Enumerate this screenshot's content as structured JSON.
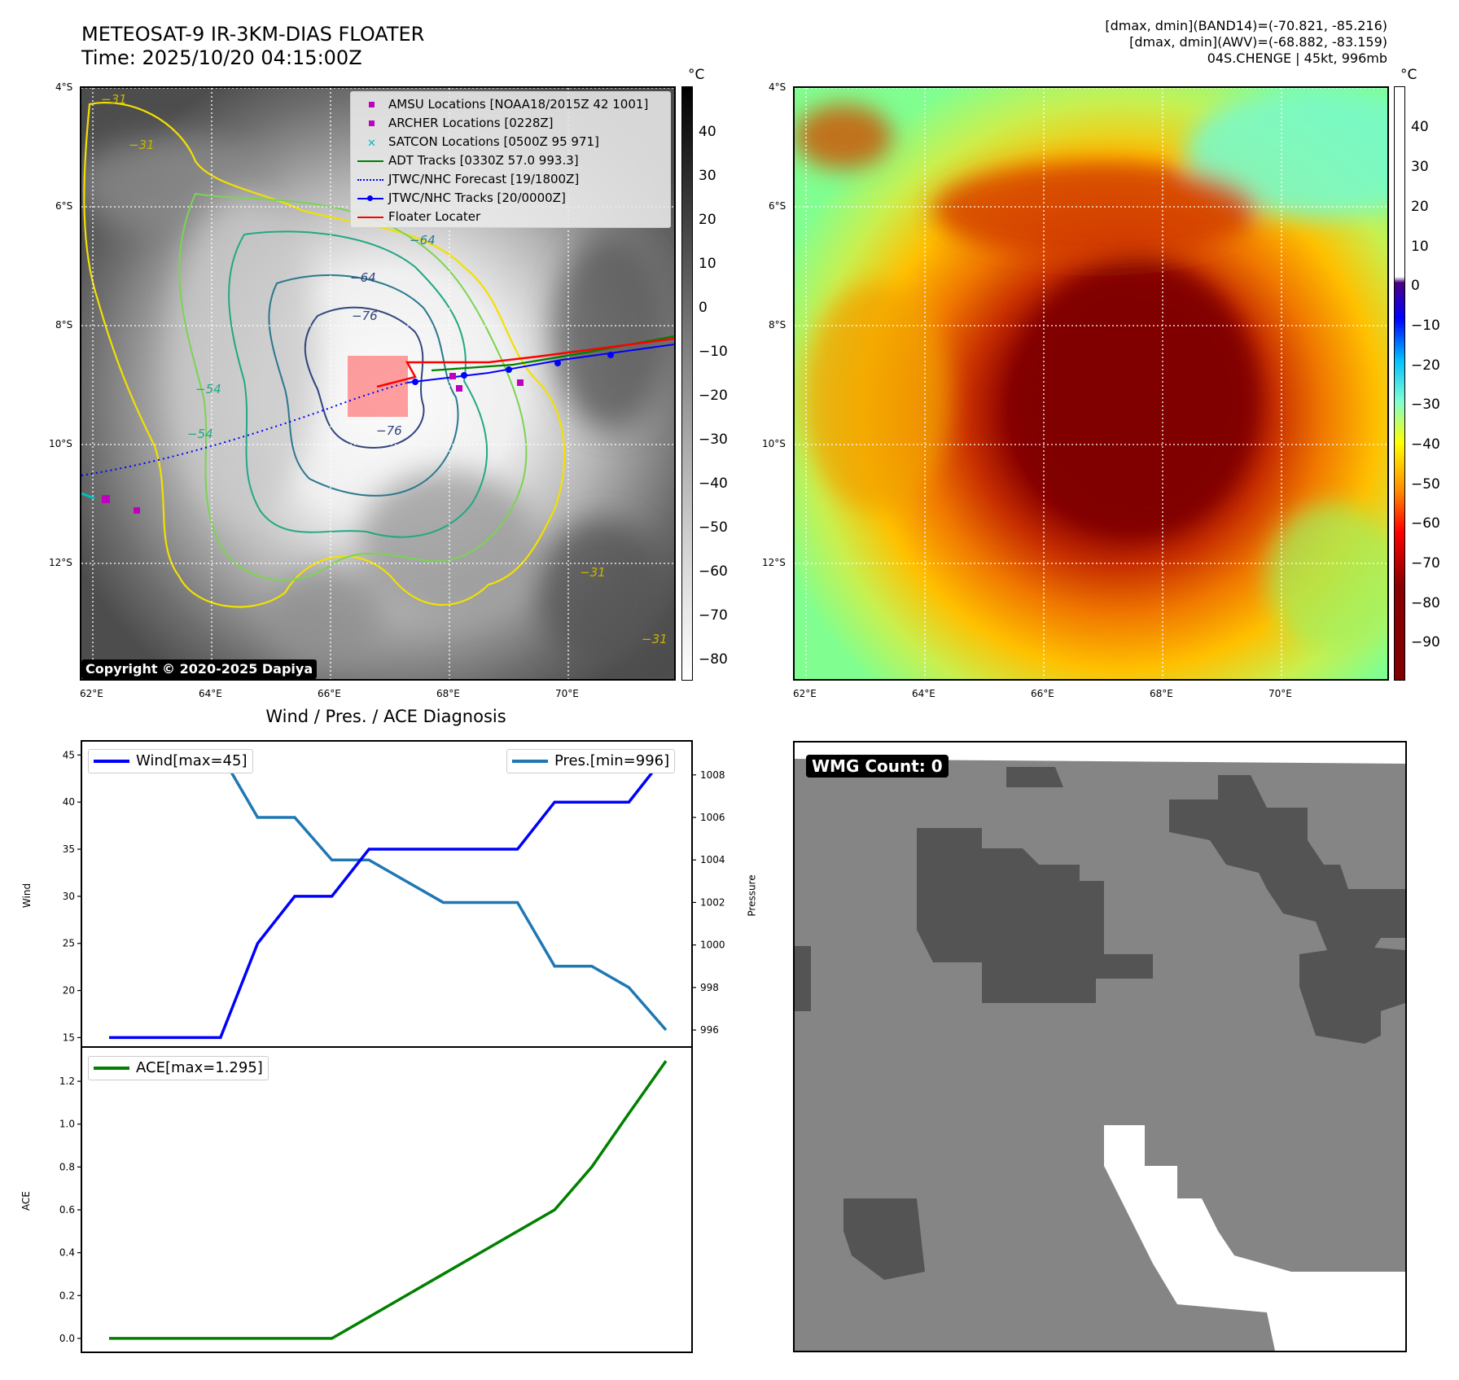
{
  "header": {
    "title_line1": "METEOSAT-9 IR-3KM-DIAS FLOATER",
    "title_line2": "Time: 2025/10/20 04:15:00Z",
    "info_line1": "[dmax, dmin](BAND14)=(-70.821, -85.216)",
    "info_line2": "[dmax, dmin](AWV)=(-68.882, -83.159)",
    "info_line3": "04S.CHENGE | 45kt, 996mb"
  },
  "map_axes": {
    "lat_labels": [
      "4°S",
      "6°S",
      "8°S",
      "10°S",
      "12°S"
    ],
    "lon_labels": [
      "62°E",
      "64°E",
      "66°E",
      "68°E",
      "70°E"
    ]
  },
  "colorbar_ir": {
    "unit": "°C",
    "ticks": [
      "40",
      "30",
      "20",
      "10",
      "0",
      "−10",
      "−20",
      "−30",
      "−40",
      "−50",
      "−60",
      "−70",
      "−80"
    ]
  },
  "colorbar_awv": {
    "unit": "°C",
    "ticks": [
      "40",
      "30",
      "20",
      "10",
      "0",
      "−10",
      "−20",
      "−30",
      "−40",
      "−50",
      "−60",
      "−70",
      "−80",
      "−90"
    ]
  },
  "ir_legend": {
    "items": [
      {
        "label": "AMSU Locations [NOAA18/2015Z 42 1001]",
        "symbol": "square",
        "color": "#bf00bf"
      },
      {
        "label": "ARCHER Locations [0228Z]",
        "symbol": "square",
        "color": "#bf00bf"
      },
      {
        "label": "SATCON Locations [0500Z 95 971]",
        "symbol": "x",
        "color": "#00bfbf"
      },
      {
        "label": "ADT Tracks [0330Z 57.0 993.3]",
        "symbol": "line",
        "color": "#008000"
      },
      {
        "label": "JTWC/NHC Forecast [19/1800Z]",
        "symbol": "dotted",
        "color": "#0000ff"
      },
      {
        "label": "JTWC/NHC Tracks [20/0000Z]",
        "symbol": "line-dot",
        "color": "#0000ff"
      },
      {
        "label": "Floater Locater",
        "symbol": "line",
        "color": "#ff0000"
      }
    ]
  },
  "contour_labels": [
    "−31",
    "−31",
    "−64",
    "−64",
    "−76",
    "−76",
    "−54",
    "−54",
    "−31",
    "−31"
  ],
  "copyright": "Copyright © 2020-2025 Dapiya",
  "diagnosis_title": "Wind / Pres. / ACE Diagnosis",
  "wmg": {
    "label": "WMG Count: 0"
  },
  "chart_data": [
    {
      "type": "line",
      "title": "Wind / Pres. / ACE Diagnosis",
      "x": [
        0,
        1,
        2,
        3,
        4,
        5,
        6,
        7,
        8,
        9,
        10,
        11,
        12,
        13,
        14,
        15
      ],
      "series": [
        {
          "name": "Wind[max=45]",
          "axis": "left",
          "color": "#0000ff",
          "values": [
            15,
            15,
            15,
            15,
            25,
            30,
            30,
            35,
            35,
            35,
            35,
            35,
            40,
            40,
            40,
            45
          ]
        },
        {
          "name": "Pres.[min=996]",
          "axis": "right",
          "color": "#1f77b4",
          "values": [
            1009,
            1009,
            1009,
            1009,
            1006,
            1006,
            1004,
            1004,
            1003,
            1002,
            1002,
            1002,
            999,
            999,
            998,
            996
          ]
        }
      ],
      "ylabel": "Wind",
      "y2label": "Pressure",
      "ylim": [
        14,
        46.5
      ],
      "y2lim": [
        995.2,
        1009.6
      ],
      "yticks": [
        15,
        20,
        25,
        30,
        35,
        40,
        45
      ],
      "y2ticks": [
        996,
        998,
        1000,
        1002,
        1004,
        1006,
        1008
      ]
    },
    {
      "type": "line",
      "x": [
        0,
        1,
        2,
        3,
        4,
        5,
        6,
        7,
        8,
        9,
        10,
        11,
        12,
        13,
        14,
        15
      ],
      "series": [
        {
          "name": "ACE[max=1.295]",
          "color": "#008000",
          "values": [
            0,
            0,
            0,
            0,
            0,
            0,
            0,
            0.1,
            0.2,
            0.3,
            0.4,
            0.5,
            0.6,
            0.8,
            1.05,
            1.295
          ]
        }
      ],
      "ylabel": "ACE",
      "ylim": [
        -0.065,
        1.36
      ],
      "yticks": [
        "0.0",
        "0.2",
        "0.4",
        "0.6",
        "0.8",
        "1.0",
        "1.2"
      ]
    }
  ]
}
